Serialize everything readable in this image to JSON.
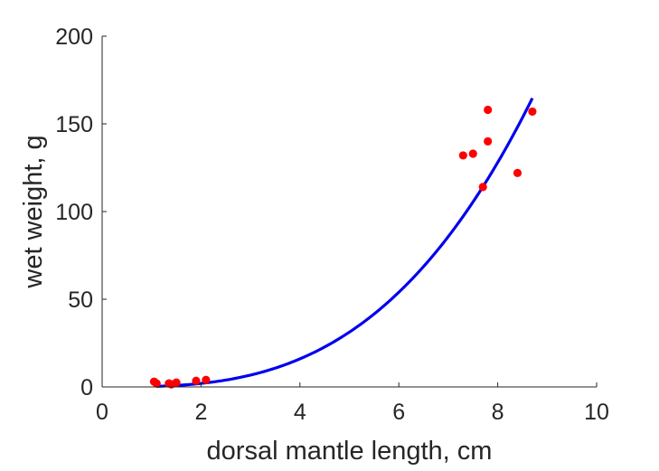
{
  "chart_data": {
    "type": "scatter",
    "title": "",
    "xlabel": "dorsal mantle length, cm",
    "ylabel": "wet weight, g",
    "xlim": [
      0,
      10
    ],
    "ylim": [
      0,
      200
    ],
    "xticks": [
      0,
      2,
      4,
      6,
      8,
      10
    ],
    "yticks": [
      0,
      50,
      100,
      150,
      200
    ],
    "xtick_labels": [
      "0",
      "2",
      "4",
      "6",
      "8",
      "10"
    ],
    "ytick_labels": [
      "0",
      "50",
      "100",
      "150",
      "200"
    ],
    "grid": false,
    "legend": "none",
    "series": [
      {
        "kind": "points",
        "color": "#ff0000",
        "x": [
          1.05,
          1.1,
          1.35,
          1.4,
          1.5,
          1.9,
          2.1,
          7.3,
          7.5,
          7.7,
          7.8,
          7.8,
          8.4,
          8.7
        ],
        "y": [
          3,
          2,
          2,
          1.5,
          2.5,
          3.5,
          4,
          132,
          133,
          114,
          140,
          158,
          122,
          157
        ]
      },
      {
        "kind": "fit-curve",
        "color": "#0000ee",
        "model": "power",
        "coefficient": 0.25,
        "exponent": 3,
        "x_range": [
          1.1,
          8.7
        ]
      }
    ]
  }
}
